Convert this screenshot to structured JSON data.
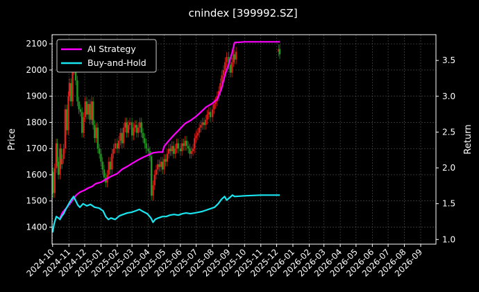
{
  "chart_data": {
    "type": "line",
    "title": "cnindex [399992.SZ]",
    "xlabel": "",
    "ylabel_left": "Price",
    "ylabel_right": "Return",
    "x_ticks": [
      "2024-10",
      "2024-11",
      "2024-12",
      "2025-01",
      "2025-02",
      "2025-03",
      "2025-04",
      "2025-05",
      "2025-06",
      "2025-07",
      "2025-08",
      "2025-09",
      "2025-10",
      "2025-11",
      "2025-12",
      "2026-01",
      "2026-02",
      "2026-03",
      "2026-04",
      "2026-05",
      "2026-06",
      "2026-07",
      "2026-08",
      "2026-09"
    ],
    "xlim": [
      "2024-09-30",
      "2026-09-30"
    ],
    "y_left_ticks": [
      1400,
      1500,
      1600,
      1700,
      1800,
      1900,
      2000,
      2100
    ],
    "ylim_left": [
      1335,
      2135
    ],
    "y_right_ticks": [
      1.0,
      1.5,
      2.0,
      2.5,
      3.0,
      3.5
    ],
    "ylim_right": [
      0.935,
      3.86
    ],
    "grid": true,
    "legend_position": "top-left",
    "colors": {
      "up_candle": "#e0201a",
      "down_candle": "#1f9a1f",
      "ai_strategy": "#ff00ff",
      "buy_and_hold": "#19e6f0",
      "grid": "#555555",
      "axes": "#ffffff"
    },
    "candlestick_price": [
      [
        "2024-10-01",
        1610
      ],
      [
        "2024-10-02",
        1530
      ],
      [
        "2024-10-05",
        1625
      ],
      [
        "2024-10-08",
        1720
      ],
      [
        "2024-10-10",
        1650
      ],
      [
        "2024-10-12",
        1600
      ],
      [
        "2024-10-15",
        1700
      ],
      [
        "2024-10-17",
        1640
      ],
      [
        "2024-10-19",
        1660
      ],
      [
        "2024-10-22",
        1700
      ],
      [
        "2024-10-25",
        1850
      ],
      [
        "2024-10-28",
        1770
      ],
      [
        "2024-10-31",
        1900
      ],
      [
        "2024-11-02",
        1950
      ],
      [
        "2024-11-05",
        1880
      ],
      [
        "2024-11-08",
        2000
      ],
      [
        "2024-11-11",
        2030
      ],
      [
        "2024-11-14",
        1960
      ],
      [
        "2024-11-17",
        1880
      ],
      [
        "2024-11-20",
        1850
      ],
      [
        "2024-11-23",
        1840
      ],
      [
        "2024-11-26",
        1760
      ],
      [
        "2024-11-29",
        1820
      ],
      [
        "2024-12-02",
        1880
      ],
      [
        "2024-12-05",
        1830
      ],
      [
        "2024-12-08",
        1870
      ],
      [
        "2024-12-11",
        1810
      ],
      [
        "2024-12-14",
        1880
      ],
      [
        "2024-12-17",
        1790
      ],
      [
        "2024-12-20",
        1740
      ],
      [
        "2024-12-23",
        1780
      ],
      [
        "2024-12-26",
        1700
      ],
      [
        "2024-12-29",
        1680
      ],
      [
        "2025-01-01",
        1650
      ],
      [
        "2025-01-04",
        1620
      ],
      [
        "2025-01-07",
        1590
      ],
      [
        "2025-01-10",
        1570
      ],
      [
        "2025-01-13",
        1600
      ],
      [
        "2025-01-16",
        1650
      ],
      [
        "2025-01-19",
        1620
      ],
      [
        "2025-01-22",
        1680
      ],
      [
        "2025-01-25",
        1700
      ],
      [
        "2025-01-28",
        1720
      ],
      [
        "2025-02-01",
        1700
      ],
      [
        "2025-02-04",
        1730
      ],
      [
        "2025-02-07",
        1760
      ],
      [
        "2025-02-10",
        1720
      ],
      [
        "2025-02-13",
        1780
      ],
      [
        "2025-02-16",
        1800
      ],
      [
        "2025-02-19",
        1760
      ],
      [
        "2025-02-22",
        1790
      ],
      [
        "2025-02-25",
        1800
      ],
      [
        "2025-03-01",
        1750
      ],
      [
        "2025-03-04",
        1780
      ],
      [
        "2025-03-07",
        1790
      ],
      [
        "2025-03-10",
        1760
      ],
      [
        "2025-03-13",
        1780
      ],
      [
        "2025-03-16",
        1800
      ],
      [
        "2025-03-19",
        1760
      ],
      [
        "2025-03-22",
        1740
      ],
      [
        "2025-03-25",
        1720
      ],
      [
        "2025-03-28",
        1700
      ],
      [
        "2025-04-01",
        1690
      ],
      [
        "2025-04-04",
        1670
      ],
      [
        "2025-04-07",
        1520
      ],
      [
        "2025-04-10",
        1560
      ],
      [
        "2025-04-13",
        1600
      ],
      [
        "2025-04-16",
        1620
      ],
      [
        "2025-04-19",
        1640
      ],
      [
        "2025-04-22",
        1630
      ],
      [
        "2025-04-25",
        1650
      ],
      [
        "2025-04-28",
        1620
      ],
      [
        "2025-05-01",
        1660
      ],
      [
        "2025-05-04",
        1650
      ],
      [
        "2025-05-07",
        1680
      ],
      [
        "2025-05-10",
        1700
      ],
      [
        "2025-05-13",
        1690
      ],
      [
        "2025-05-16",
        1710
      ],
      [
        "2025-05-19",
        1680
      ],
      [
        "2025-05-22",
        1700
      ],
      [
        "2025-05-25",
        1720
      ],
      [
        "2025-05-28",
        1700
      ],
      [
        "2025-06-01",
        1690
      ],
      [
        "2025-06-04",
        1720
      ],
      [
        "2025-06-07",
        1710
      ],
      [
        "2025-06-10",
        1730
      ],
      [
        "2025-06-13",
        1710
      ],
      [
        "2025-06-16",
        1700
      ],
      [
        "2025-06-19",
        1680
      ],
      [
        "2025-06-22",
        1690
      ],
      [
        "2025-06-25",
        1700
      ],
      [
        "2025-06-28",
        1740
      ],
      [
        "2025-07-01",
        1750
      ],
      [
        "2025-07-04",
        1760
      ],
      [
        "2025-07-07",
        1780
      ],
      [
        "2025-07-10",
        1790
      ],
      [
        "2025-07-13",
        1800
      ],
      [
        "2025-07-16",
        1790
      ],
      [
        "2025-07-19",
        1810
      ],
      [
        "2025-07-22",
        1830
      ],
      [
        "2025-07-25",
        1840
      ],
      [
        "2025-07-28",
        1820
      ],
      [
        "2025-08-01",
        1850
      ],
      [
        "2025-08-04",
        1870
      ],
      [
        "2025-08-07",
        1880
      ],
      [
        "2025-08-10",
        1900
      ],
      [
        "2025-08-13",
        1920
      ],
      [
        "2025-08-16",
        1950
      ],
      [
        "2025-08-19",
        1980
      ],
      [
        "2025-08-22",
        2000
      ],
      [
        "2025-08-25",
        2030
      ],
      [
        "2025-08-28",
        2050
      ],
      [
        "2025-09-01",
        2020
      ],
      [
        "2025-09-04",
        1990
      ],
      [
        "2025-09-07",
        2030
      ],
      [
        "2025-09-10",
        2060
      ],
      [
        "2025-09-12",
        2040
      ],
      [
        "2025-09-15",
        2070
      ],
      [
        "2025-12-05",
        2080
      ],
      [
        "2025-12-07",
        2060
      ]
    ],
    "series": [
      {
        "name": "AI Strategy",
        "axis": "right",
        "points": [
          [
            "2024-10-15",
            1.3
          ],
          [
            "2024-10-20",
            1.38
          ],
          [
            "2024-10-25",
            1.42
          ],
          [
            "2024-11-01",
            1.48
          ],
          [
            "2024-11-08",
            1.55
          ],
          [
            "2024-11-15",
            1.62
          ],
          [
            "2024-11-22",
            1.66
          ],
          [
            "2024-12-01",
            1.69
          ],
          [
            "2024-12-08",
            1.72
          ],
          [
            "2024-12-15",
            1.74
          ],
          [
            "2024-12-22",
            1.78
          ],
          [
            "2025-01-01",
            1.8
          ],
          [
            "2025-01-10",
            1.84
          ],
          [
            "2025-01-20",
            1.88
          ],
          [
            "2025-02-01",
            1.92
          ],
          [
            "2025-02-10",
            1.98
          ],
          [
            "2025-02-20",
            2.02
          ],
          [
            "2025-03-01",
            2.06
          ],
          [
            "2025-03-10",
            2.1
          ],
          [
            "2025-03-20",
            2.14
          ],
          [
            "2025-04-01",
            2.18
          ],
          [
            "2025-04-10",
            2.21
          ],
          [
            "2025-04-20",
            2.22
          ],
          [
            "2025-04-28",
            2.22
          ],
          [
            "2025-05-01",
            2.3
          ],
          [
            "2025-05-10",
            2.38
          ],
          [
            "2025-05-20",
            2.46
          ],
          [
            "2025-06-01",
            2.55
          ],
          [
            "2025-06-10",
            2.62
          ],
          [
            "2025-06-20",
            2.66
          ],
          [
            "2025-07-01",
            2.72
          ],
          [
            "2025-07-10",
            2.78
          ],
          [
            "2025-07-20",
            2.85
          ],
          [
            "2025-08-01",
            2.9
          ],
          [
            "2025-08-10",
            2.96
          ],
          [
            "2025-08-18",
            3.1
          ],
          [
            "2025-08-25",
            3.3
          ],
          [
            "2025-09-01",
            3.45
          ],
          [
            "2025-09-07",
            3.6
          ],
          [
            "2025-09-12",
            3.75
          ],
          [
            "2025-10-01",
            3.76
          ],
          [
            "2025-12-07",
            3.76
          ]
        ]
      },
      {
        "name": "Buy-and-Hold",
        "axis": "right",
        "points": [
          [
            "2024-10-01",
            1.1
          ],
          [
            "2024-10-04",
            1.22
          ],
          [
            "2024-10-08",
            1.32
          ],
          [
            "2024-10-12",
            1.3
          ],
          [
            "2024-10-15",
            1.28
          ],
          [
            "2024-10-18",
            1.32
          ],
          [
            "2024-10-22",
            1.36
          ],
          [
            "2024-10-26",
            1.42
          ],
          [
            "2024-11-01",
            1.5
          ],
          [
            "2024-11-06",
            1.56
          ],
          [
            "2024-11-10",
            1.6
          ],
          [
            "2024-11-14",
            1.54
          ],
          [
            "2024-11-18",
            1.48
          ],
          [
            "2024-11-22",
            1.45
          ],
          [
            "2024-11-28",
            1.5
          ],
          [
            "2024-12-05",
            1.47
          ],
          [
            "2024-12-12",
            1.49
          ],
          [
            "2024-12-20",
            1.45
          ],
          [
            "2024-12-28",
            1.44
          ],
          [
            "2025-01-05",
            1.4
          ],
          [
            "2025-01-10",
            1.32
          ],
          [
            "2025-01-15",
            1.28
          ],
          [
            "2025-01-20",
            1.3
          ],
          [
            "2025-01-28",
            1.28
          ],
          [
            "2025-02-05",
            1.33
          ],
          [
            "2025-02-12",
            1.35
          ],
          [
            "2025-02-20",
            1.37
          ],
          [
            "2025-02-28",
            1.38
          ],
          [
            "2025-03-08",
            1.4
          ],
          [
            "2025-03-15",
            1.42
          ],
          [
            "2025-03-22",
            1.39
          ],
          [
            "2025-03-30",
            1.36
          ],
          [
            "2025-04-06",
            1.3
          ],
          [
            "2025-04-10",
            1.24
          ],
          [
            "2025-04-14",
            1.28
          ],
          [
            "2025-04-20",
            1.3
          ],
          [
            "2025-04-28",
            1.32
          ],
          [
            "2025-05-05",
            1.32
          ],
          [
            "2025-05-12",
            1.34
          ],
          [
            "2025-05-20",
            1.35
          ],
          [
            "2025-05-28",
            1.34
          ],
          [
            "2025-06-05",
            1.36
          ],
          [
            "2025-06-12",
            1.37
          ],
          [
            "2025-06-20",
            1.36
          ],
          [
            "2025-06-28",
            1.37
          ],
          [
            "2025-07-05",
            1.38
          ],
          [
            "2025-07-12",
            1.39
          ],
          [
            "2025-07-20",
            1.41
          ],
          [
            "2025-07-28",
            1.43
          ],
          [
            "2025-08-05",
            1.45
          ],
          [
            "2025-08-12",
            1.5
          ],
          [
            "2025-08-18",
            1.56
          ],
          [
            "2025-08-24",
            1.6
          ],
          [
            "2025-08-28",
            1.55
          ],
          [
            "2025-09-02",
            1.58
          ],
          [
            "2025-09-08",
            1.62
          ],
          [
            "2025-09-12",
            1.6
          ],
          [
            "2025-10-01",
            1.61
          ],
          [
            "2025-11-01",
            1.62
          ],
          [
            "2025-12-07",
            1.62
          ]
        ]
      }
    ]
  }
}
